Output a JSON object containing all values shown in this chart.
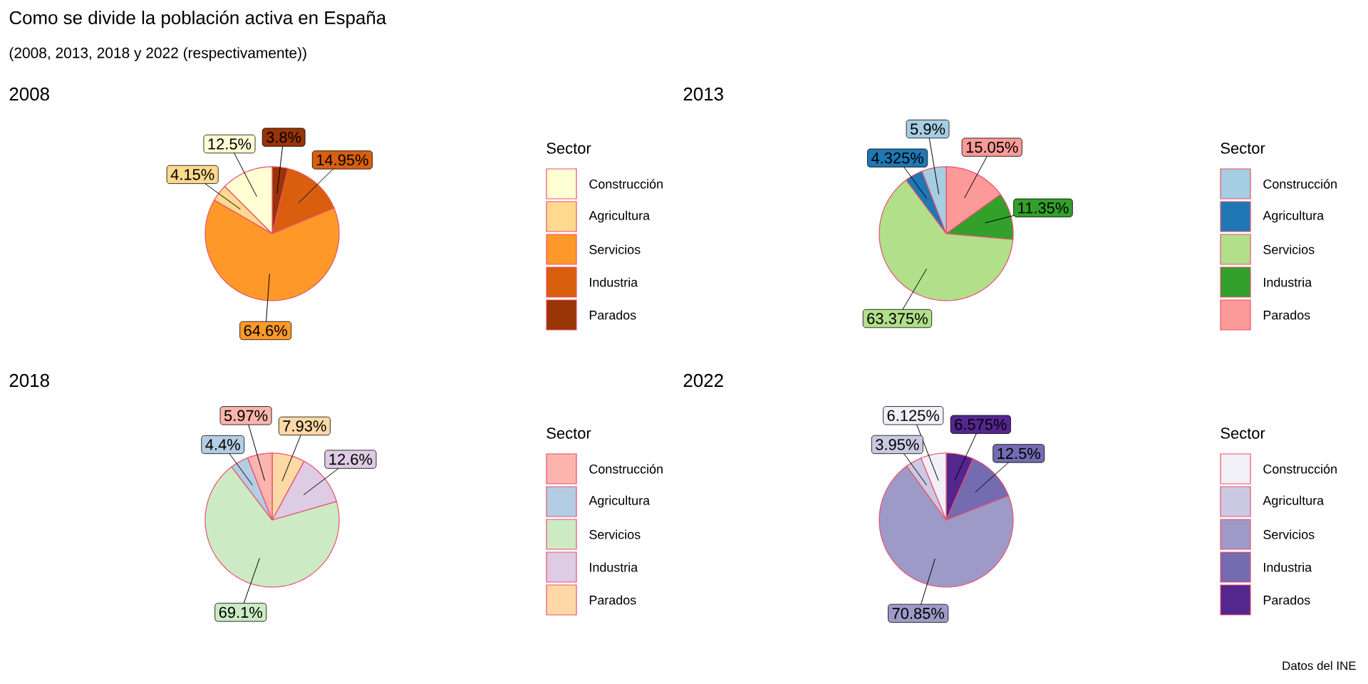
{
  "chart_data": [
    {
      "type": "other",
      "title": "Como se divide la población activa en España",
      "subtitle": "(2008, 2013, 2018 y 2022 (respectivamente))",
      "annotations": [
        "Datos del INE"
      ]
    },
    {
      "type": "pie",
      "title": "2008",
      "legend_title": "Sector",
      "legend": "right",
      "categories": [
        "Construcción",
        "Agricultura",
        "Servicios",
        "Industria",
        "Parados"
      ],
      "values": [
        12.5,
        4.15,
        64.6,
        14.95,
        3.8
      ],
      "value_labels": [
        "12.5%",
        "4.15%",
        "64.6%",
        "14.95%",
        "3.8%"
      ],
      "colors": [
        "#ffffd4",
        "#fed98e",
        "#fe9929",
        "#d95f0e",
        "#993404"
      ]
    },
    {
      "type": "pie",
      "title": "2013",
      "legend_title": "Sector",
      "legend": "right",
      "categories": [
        "Construcción",
        "Agricultura",
        "Servicios",
        "Industria",
        "Parados"
      ],
      "values": [
        5.9,
        4.325,
        63.375,
        11.35,
        15.05
      ],
      "value_labels": [
        "5.9%",
        "4.325%",
        "63.375%",
        "11.35%",
        "15.05%"
      ],
      "colors": [
        "#a6cee3",
        "#1f78b4",
        "#b2df8a",
        "#33a02c",
        "#fb9a99"
      ]
    },
    {
      "type": "pie",
      "title": "2018",
      "legend_title": "Sector",
      "legend": "right",
      "categories": [
        "Construcción",
        "Agricultura",
        "Servicios",
        "Industria",
        "Parados"
      ],
      "values": [
        5.97,
        4.4,
        69.1,
        12.6,
        7.93
      ],
      "value_labels": [
        "5.97%",
        "4.4%",
        "69.1%",
        "12.6%",
        "7.93%"
      ],
      "colors": [
        "#fbb4ae",
        "#b3cde3",
        "#ccebc5",
        "#decbe4",
        "#fed9a6"
      ]
    },
    {
      "type": "pie",
      "title": "2022",
      "legend_title": "Sector",
      "legend": "right",
      "categories": [
        "Construcción",
        "Agricultura",
        "Servicios",
        "Industria",
        "Parados"
      ],
      "values": [
        6.125,
        3.95,
        70.85,
        12.5,
        6.575
      ],
      "value_labels": [
        "6.125%",
        "3.95%",
        "70.85%",
        "12.5%",
        "6.575%"
      ],
      "colors": [
        "#f2f0f7",
        "#cbc9e2",
        "#9e9ac8",
        "#756bb1",
        "#54278f"
      ]
    }
  ]
}
